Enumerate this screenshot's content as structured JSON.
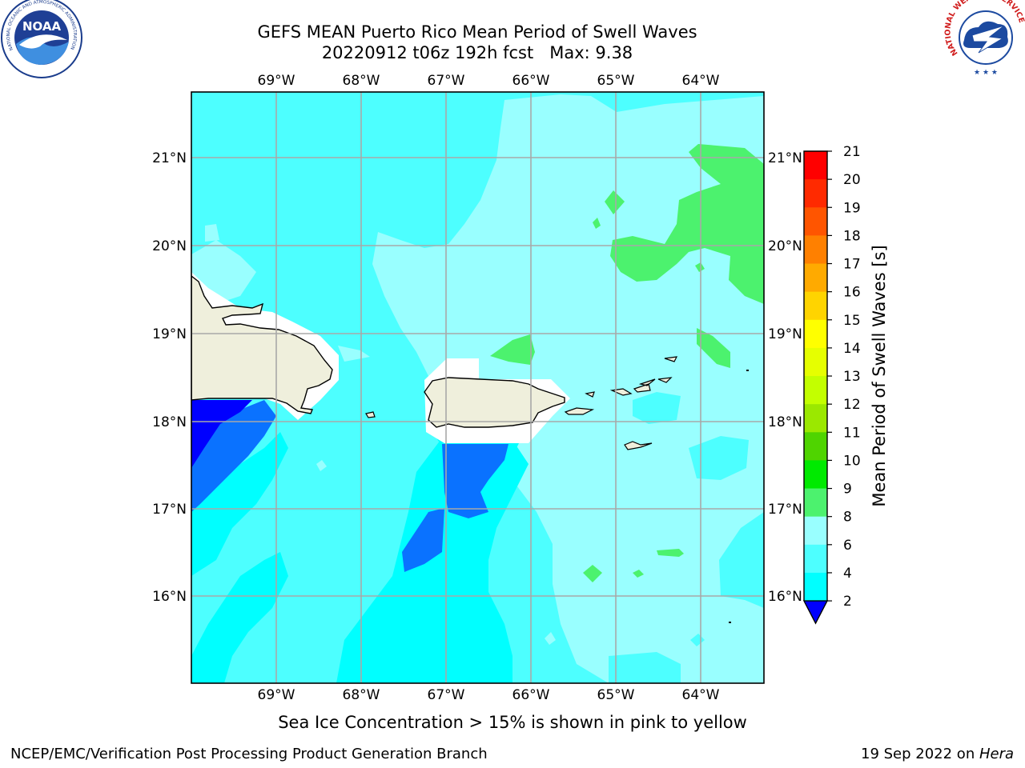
{
  "title": {
    "line1": "GEFS MEAN Puerto Rico Mean Period of Swell Waves",
    "line2": "20220912 t06z 192h fcst   Max: 9.38"
  },
  "map": {
    "lon_ticks": [
      "69°W",
      "68°W",
      "67°W",
      "66°W",
      "65°W",
      "64°W"
    ],
    "lat_ticks": [
      "21°N",
      "20°N",
      "19°N",
      "18°N",
      "17°N",
      "16°N"
    ],
    "colors": {
      "deep_blue": "#0000ff",
      "blue": "#0a72ff",
      "cyan": "#00ffff",
      "light_cyan": "#4dffff",
      "pale_cyan": "#99ffff",
      "green": "#4cf26e",
      "land": "#efefdc",
      "masked": "#ffffff",
      "grid": "#a8a8a8"
    }
  },
  "colorbar": {
    "label": "Mean Period of Swell Waves [s]",
    "ticks": [
      "21",
      "20",
      "19",
      "18",
      "17",
      "16",
      "15",
      "14",
      "13",
      "12",
      "11",
      "10",
      "9",
      "8",
      "6",
      "4",
      "2"
    ],
    "colors": [
      "#ff0000",
      "#ff2a00",
      "#ff5500",
      "#ff8000",
      "#ffaa00",
      "#ffd400",
      "#ffff00",
      "#e6ff00",
      "#c3ff00",
      "#9be800",
      "#4fd400",
      "#00ea00",
      "#4cf26e",
      "#99ffff",
      "#4dffff",
      "#00ffff",
      "#0a72ff"
    ],
    "under_color": "#0000ff"
  },
  "note": "Sea Ice Concentration > 15% is shown in pink to yellow",
  "footer": {
    "left": "NCEP/EMC/Verification Post Processing Product Generation Branch",
    "right_prefix": "19 Sep 2022 on ",
    "right_host": "Hera"
  },
  "logos": {
    "noaa": "NOAA",
    "nws": "NATIONAL WEATHER SERVICE"
  }
}
